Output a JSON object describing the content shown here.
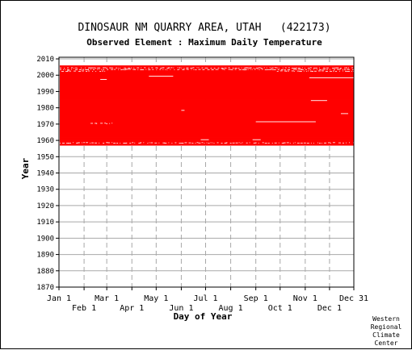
{
  "chart_data": {
    "type": "heatmap",
    "title": "DINOSAUR NM QUARRY AREA, UTAH   (422173)",
    "subtitle": "Observed Element : Maximum Daily Temperature",
    "xlabel": "Day of Year",
    "ylabel": "Year",
    "x_ticks_upper": [
      "Jan 1",
      "Mar 1",
      "May 1",
      "Jul 1",
      "Sep 1",
      "Nov 1",
      "Dec 31"
    ],
    "x_ticks_lower": [
      "Feb 1",
      "Apr 1",
      "Jun 1",
      "Aug 1",
      "Oct 1",
      "Dec 1"
    ],
    "y_ticks": [
      "2010",
      "2000",
      "1990",
      "1980",
      "1970",
      "1960",
      "1950",
      "1940",
      "1930",
      "1920",
      "1910",
      "1900",
      "1890",
      "1880",
      "1870"
    ],
    "ylim": [
      1870,
      2011
    ],
    "xlim": [
      1,
      365
    ],
    "grid": true,
    "data_color": "#ff0000",
    "observed_years": [
      1957,
      2005
    ],
    "missing_data": [
      {
        "year": 2004,
        "day_start": 1,
        "day_end": 365,
        "density": "sparse"
      },
      {
        "year": 2003,
        "day_start": 1,
        "day_end": 365,
        "density": "sparse"
      },
      {
        "year": 2002,
        "day_start": 1,
        "day_end": 60,
        "density": "sparse"
      },
      {
        "year": 2002,
        "day_start": 270,
        "day_end": 365,
        "density": "sparse"
      },
      {
        "year": 1999,
        "day_start": 112,
        "day_end": 142,
        "density": "line"
      },
      {
        "year": 1998,
        "day_start": 310,
        "day_end": 365,
        "density": "line"
      },
      {
        "year": 1997,
        "day_start": 52,
        "day_end": 60,
        "density": "line"
      },
      {
        "year": 1984,
        "day_start": 312,
        "day_end": 332,
        "density": "line"
      },
      {
        "year": 1978,
        "day_start": 152,
        "day_end": 156,
        "density": "line"
      },
      {
        "year": 1976,
        "day_start": 349,
        "day_end": 358,
        "density": "line"
      },
      {
        "year": 1971,
        "day_start": 244,
        "day_end": 318,
        "density": "line"
      },
      {
        "year": 1970,
        "day_start": 40,
        "day_end": 70,
        "density": "sparse"
      },
      {
        "year": 1960,
        "day_start": 176,
        "day_end": 186,
        "density": "line"
      },
      {
        "year": 1960,
        "day_start": 240,
        "day_end": 250,
        "density": "line"
      },
      {
        "year": 1958,
        "day_start": 1,
        "day_end": 365,
        "density": "sparse"
      }
    ]
  },
  "footer": {
    "credit": [
      "Western",
      "Regional",
      "Climate",
      "Center"
    ]
  }
}
